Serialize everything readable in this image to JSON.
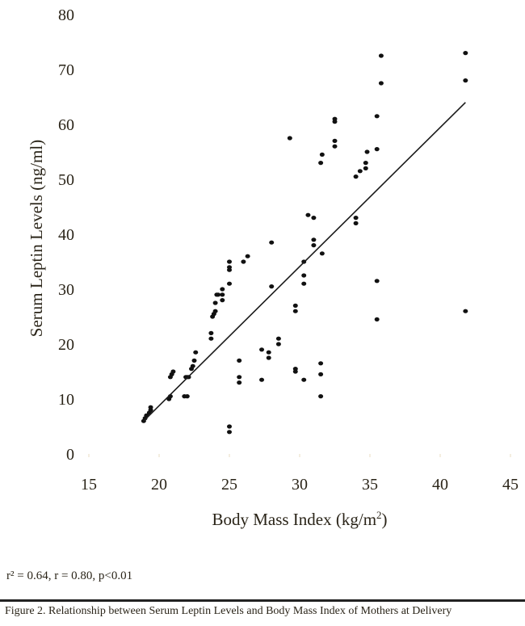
{
  "chart_data": {
    "type": "scatter",
    "title": "",
    "xlabel": "Body Mass Index (kg/m",
    "xlabel_sup": "2",
    "xlabel_end": ")",
    "ylabel": "Serum Leptin Levels (ng/ml)",
    "xlim": [
      15,
      45
    ],
    "ylim": [
      0,
      80
    ],
    "xticks": [
      "15",
      "20",
      "25",
      "30",
      "35",
      "40",
      "45"
    ],
    "yticks": [
      "0",
      "10",
      "20",
      "30",
      "40",
      "50",
      "60",
      "70",
      "80"
    ],
    "grid": false,
    "point_color": "#111111",
    "series": [
      {
        "name": "Mothers at delivery",
        "points": [
          [
            18.9,
            6
          ],
          [
            19.0,
            6.5
          ],
          [
            19.1,
            7
          ],
          [
            19.3,
            7.5
          ],
          [
            19.4,
            8
          ],
          [
            19.4,
            8.5
          ],
          [
            20.7,
            10
          ],
          [
            20.8,
            10.5
          ],
          [
            20.8,
            14
          ],
          [
            20.9,
            14.5
          ],
          [
            21.0,
            15
          ],
          [
            21.8,
            10.5
          ],
          [
            22.0,
            10.5
          ],
          [
            21.9,
            14
          ],
          [
            22.0,
            14
          ],
          [
            22.1,
            14
          ],
          [
            22.3,
            15.5
          ],
          [
            22.4,
            16
          ],
          [
            22.5,
            17
          ],
          [
            22.6,
            18.5
          ],
          [
            23.7,
            21
          ],
          [
            23.7,
            22
          ],
          [
            23.8,
            25
          ],
          [
            23.9,
            25.5
          ],
          [
            24.0,
            26
          ],
          [
            24.0,
            27.5
          ],
          [
            24.1,
            29
          ],
          [
            24.2,
            29
          ],
          [
            24.5,
            28
          ],
          [
            24.5,
            29
          ],
          [
            24.5,
            30
          ],
          [
            25.0,
            4
          ],
          [
            25.0,
            5
          ],
          [
            25.0,
            31
          ],
          [
            25.0,
            33.5
          ],
          [
            25.0,
            34
          ],
          [
            25.0,
            35
          ],
          [
            25.7,
            13
          ],
          [
            25.7,
            14
          ],
          [
            25.7,
            17
          ],
          [
            26.0,
            35
          ],
          [
            26.3,
            36
          ],
          [
            27.3,
            13.5
          ],
          [
            27.3,
            19
          ],
          [
            27.8,
            17.5
          ],
          [
            27.8,
            18.5
          ],
          [
            28.0,
            30.5
          ],
          [
            28.0,
            38.5
          ],
          [
            28.5,
            20
          ],
          [
            28.5,
            21
          ],
          [
            29.3,
            57.5
          ],
          [
            29.7,
            15
          ],
          [
            29.7,
            15.5
          ],
          [
            29.7,
            26
          ],
          [
            29.7,
            27
          ],
          [
            30.3,
            13.5
          ],
          [
            30.3,
            31
          ],
          [
            30.3,
            32.5
          ],
          [
            30.3,
            35
          ],
          [
            30.6,
            43.5
          ],
          [
            31.0,
            38
          ],
          [
            31.0,
            39
          ],
          [
            31.0,
            43
          ],
          [
            31.5,
            10.5
          ],
          [
            31.5,
            14.5
          ],
          [
            31.5,
            16.5
          ],
          [
            31.6,
            36.5
          ],
          [
            31.5,
            53
          ],
          [
            31.6,
            54.5
          ],
          [
            32.5,
            56
          ],
          [
            32.5,
            57
          ],
          [
            32.5,
            60.5
          ],
          [
            32.5,
            61
          ],
          [
            34.0,
            42
          ],
          [
            34.0,
            43
          ],
          [
            34.0,
            50.5
          ],
          [
            34.3,
            51.5
          ],
          [
            34.7,
            52
          ],
          [
            34.7,
            53
          ],
          [
            34.8,
            55
          ],
          [
            35.5,
            24.5
          ],
          [
            35.5,
            31.5
          ],
          [
            35.5,
            55.5
          ],
          [
            35.5,
            61.5
          ],
          [
            35.8,
            67.5
          ],
          [
            35.8,
            72.5
          ],
          [
            41.8,
            26
          ],
          [
            41.8,
            68
          ],
          [
            41.8,
            73
          ]
        ]
      }
    ],
    "fit_line": {
      "x": [
        18.9,
        41.8
      ],
      "y": [
        6,
        64
      ]
    },
    "annotation": "r² = 0.64, r = 0.80, p<0.01",
    "caption": "Figure 2. Relationship between Serum Leptin Levels and Body Mass Index of Mothers at Delivery"
  }
}
